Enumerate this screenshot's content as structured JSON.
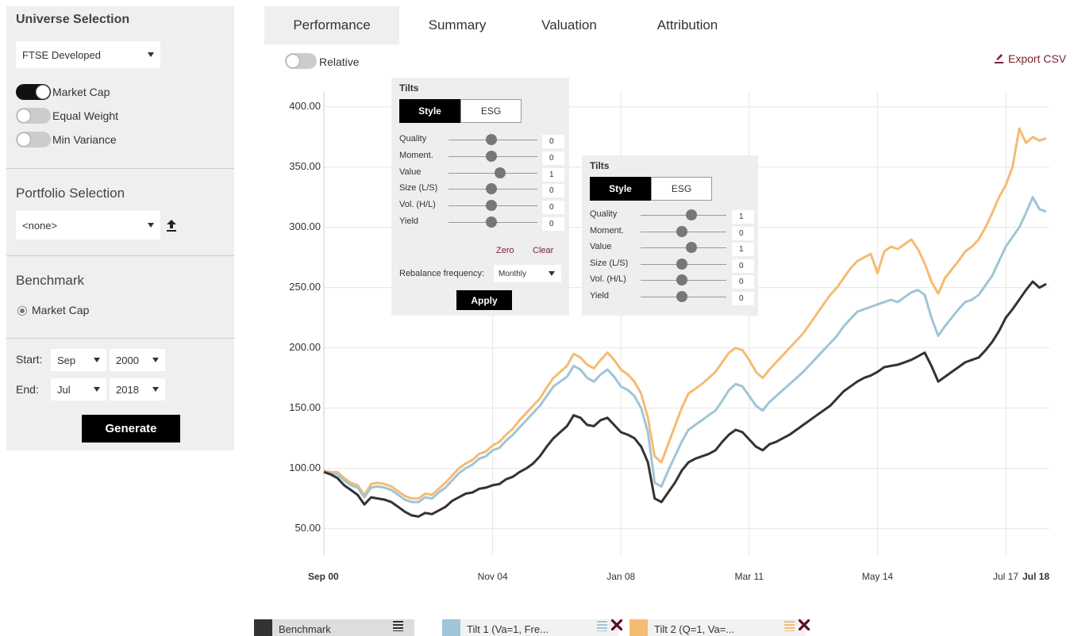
{
  "sidebar": {
    "universe": {
      "title": "Universe Selection",
      "select": "FTSE Developed",
      "weights": [
        {
          "label": "Market Cap",
          "on": true
        },
        {
          "label": "Equal Weight",
          "on": false
        },
        {
          "label": "Min Variance",
          "on": false
        }
      ]
    },
    "portfolio": {
      "title": "Portfolio Selection",
      "select": "<none>"
    },
    "benchmark": {
      "title": "Benchmark",
      "option": "Market Cap"
    },
    "dates": {
      "start_label": "Start:",
      "start_month": "Sep",
      "start_year": "2000",
      "end_label": "End:",
      "end_month": "Jul",
      "end_year": "2018"
    },
    "generate": "Generate"
  },
  "tabs": [
    "Performance",
    "Summary",
    "Valuation",
    "Attribution"
  ],
  "relative": "Relative",
  "export": "Export CSV",
  "tilts": [
    {
      "title": "Tilts",
      "tabs": [
        "Style",
        "ESG"
      ],
      "factors": [
        {
          "label": "Quality",
          "value": 0
        },
        {
          "label": "Moment.",
          "value": 0
        },
        {
          "label": "Value",
          "value": 1
        },
        {
          "label": "Size (L/S)",
          "value": 0
        },
        {
          "label": "Vol. (H/L)",
          "value": 0
        },
        {
          "label": "Yield",
          "value": 0
        }
      ],
      "zero": "Zero",
      "clear": "Clear",
      "rebalance_label": "Rebalance frequency:",
      "rebalance": "Monthly",
      "apply": "Apply"
    },
    {
      "title": "Tilts",
      "tabs": [
        "Style",
        "ESG"
      ],
      "factors": [
        {
          "label": "Quality",
          "value": 1
        },
        {
          "label": "Moment.",
          "value": 0
        },
        {
          "label": "Value",
          "value": 1
        },
        {
          "label": "Size (L/S)",
          "value": 0
        },
        {
          "label": "Vol. (H/L)",
          "value": 0
        },
        {
          "label": "Yield",
          "value": 0
        }
      ]
    }
  ],
  "chart_data": {
    "type": "line",
    "categories": [
      "Sep 00",
      null,
      null,
      null,
      null,
      null,
      null,
      null,
      null,
      null,
      null,
      null,
      null,
      null,
      null,
      null,
      null,
      null,
      null,
      null,
      null,
      null,
      null,
      null,
      null,
      "Nov 04",
      null,
      null,
      null,
      null,
      null,
      null,
      null,
      null,
      null,
      null,
      null,
      null,
      null,
      null,
      null,
      null,
      null,
      null,
      "Jan 08",
      null,
      null,
      null,
      null,
      null,
      null,
      null,
      null,
      null,
      null,
      null,
      null,
      null,
      null,
      null,
      null,
      null,
      null,
      "Mar 11",
      null,
      null,
      null,
      null,
      null,
      null,
      null,
      null,
      null,
      null,
      null,
      null,
      null,
      null,
      null,
      null,
      null,
      null,
      "May 14",
      null,
      null,
      null,
      null,
      null,
      null,
      null,
      null,
      null,
      null,
      null,
      null,
      null,
      null,
      null,
      null,
      null,
      null,
      "Jul 17",
      null,
      null,
      null,
      null,
      null,
      "Jul 18"
    ],
    "series": [
      {
        "name": "Benchmark",
        "color": "#333333",
        "values": [
          97,
          95,
          92,
          86,
          82,
          78,
          70,
          76,
          75,
          74,
          72,
          68,
          64,
          61,
          60,
          63,
          62,
          65,
          68,
          73,
          76,
          79,
          80,
          83,
          84,
          86,
          87,
          91,
          93,
          97,
          100,
          104,
          110,
          118,
          125,
          130,
          135,
          144,
          142,
          136,
          135,
          140,
          142,
          136,
          130,
          128,
          125,
          118,
          105,
          75,
          72,
          80,
          88,
          98,
          105,
          108,
          110,
          112,
          115,
          122,
          128,
          132,
          130,
          124,
          118,
          115,
          120,
          122,
          125,
          128,
          132,
          136,
          140,
          144,
          148,
          152,
          158,
          164,
          168,
          172,
          175,
          177,
          180,
          184,
          185,
          186,
          188,
          190,
          193,
          196,
          185,
          172,
          176,
          180,
          184,
          188,
          190,
          192,
          198,
          205,
          214,
          225,
          232,
          240,
          248,
          255,
          250,
          253
        ]
      },
      {
        "name": "Tilt 1 (Va=1, Fre...",
        "color": "#9fc5d6",
        "values": [
          97,
          96,
          95,
          90,
          86,
          84,
          76,
          84,
          85,
          84,
          82,
          78,
          74,
          72,
          72,
          76,
          75,
          80,
          84,
          90,
          96,
          100,
          103,
          108,
          110,
          115,
          117,
          123,
          128,
          134,
          140,
          146,
          152,
          160,
          168,
          172,
          176,
          185,
          182,
          175,
          172,
          178,
          182,
          176,
          168,
          165,
          160,
          150,
          130,
          88,
          85,
          98,
          110,
          122,
          132,
          136,
          140,
          144,
          148,
          156,
          165,
          170,
          168,
          160,
          152,
          148,
          155,
          160,
          165,
          170,
          175,
          180,
          186,
          192,
          198,
          204,
          210,
          218,
          224,
          230,
          232,
          234,
          236,
          238,
          240,
          238,
          242,
          246,
          248,
          244,
          225,
          210,
          218,
          225,
          232,
          238,
          240,
          244,
          252,
          260,
          272,
          284,
          292,
          300,
          312,
          325,
          315,
          313
        ]
      },
      {
        "name": "Tilt 2 (Q=1, Va=...",
        "color": "#f5bb72",
        "values": [
          98,
          97,
          97,
          92,
          88,
          86,
          78,
          87,
          88,
          87,
          85,
          81,
          77,
          75,
          75,
          79,
          78,
          83,
          88,
          94,
          100,
          104,
          107,
          112,
          114,
          119,
          122,
          128,
          133,
          140,
          146,
          152,
          158,
          167,
          175,
          180,
          185,
          195,
          192,
          186,
          183,
          190,
          196,
          190,
          182,
          178,
          172,
          162,
          142,
          110,
          105,
          120,
          135,
          150,
          162,
          166,
          170,
          175,
          180,
          188,
          196,
          200,
          198,
          190,
          180,
          175,
          182,
          188,
          194,
          200,
          206,
          212,
          220,
          228,
          236,
          244,
          250,
          258,
          266,
          272,
          275,
          278,
          262,
          280,
          284,
          282,
          286,
          290,
          282,
          270,
          255,
          245,
          258,
          265,
          272,
          280,
          284,
          290,
          300,
          312,
          325,
          335,
          350,
          382,
          370,
          375,
          372,
          374
        ]
      }
    ],
    "ylim": [
      28,
      413
    ],
    "yticks": [
      {
        "value": 50,
        "label": "50.00"
      },
      {
        "value": 100,
        "label": "100.00"
      },
      {
        "value": 150,
        "label": "150.00"
      },
      {
        "value": 200,
        "label": "200.00"
      },
      {
        "value": 250,
        "label": "250.00"
      },
      {
        "value": 300,
        "label": "300.00"
      },
      {
        "value": 350,
        "label": "350.00"
      },
      {
        "value": 400,
        "label": "400.00"
      }
    ],
    "grid": true
  }
}
